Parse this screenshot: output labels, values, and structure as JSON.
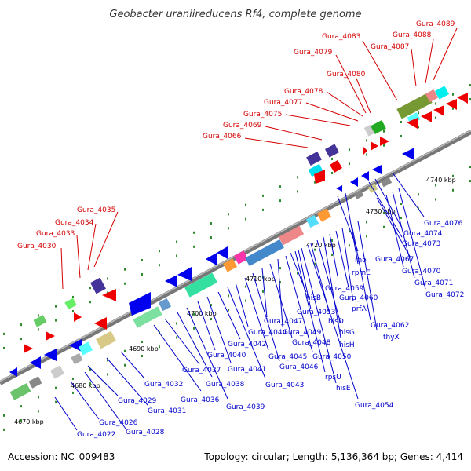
{
  "title": "Geobacter uraniireducens Rf4, complete genome",
  "footer": {
    "accession": "Accession: NC_009483",
    "summary": "Topology: circular; Length: 5,136,364 bp; Genes: 4,414"
  },
  "colors": {
    "top_labels": "#d40000",
    "bottom_labels": "#0000cc",
    "axis": "#777777",
    "ticks": "#2e8b2e"
  },
  "scale_labels": [
    "4670 kbp",
    "4680 kbp",
    "4690 kbp",
    "4700 kbp",
    "4710 kbp",
    "4720 kbp",
    "4730 kbp",
    "4740 kbp"
  ],
  "top_labels": [
    "Gura_4030",
    "Gura_4033",
    "Gura_4034",
    "Gura_4035",
    "Gura_4066",
    "Gura_4069",
    "Gura_4075",
    "Gura_4077",
    "Gura_4078",
    "Gura_4080",
    "Gura_4079",
    "Gura_4083",
    "Gura_4087",
    "Gura_4088",
    "Gura_4089"
  ],
  "bottom_labels": [
    "Gura_4022",
    "Gura_4026",
    "Gura_4028",
    "Gura_4029",
    "Gura_4031",
    "Gura_4032",
    "Gura_4036",
    "Gura_4037",
    "Gura_4038",
    "Gura_4039",
    "Gura_4040",
    "Gura_4041",
    "Gura_4042",
    "Gura_4043",
    "Gura_4044",
    "Gura_4045",
    "Gura_4046",
    "Gura_4047",
    "Gura_4048",
    "Gura_4049",
    "Gura_4050",
    "rpsU",
    "hisE",
    "Gura_4054",
    "hisB",
    "Gura_4053",
    "hisD",
    "hisG",
    "hisH",
    "Gura_4059",
    "Gura_4060",
    "prfA",
    "Gura_4062",
    "thyX",
    "rho",
    "rpmE",
    "Gura_4067",
    "Gura_4070",
    "Gura_4071",
    "Gura_4072",
    "Gura_4073",
    "Gura_4074",
    "Gura_4076"
  ]
}
